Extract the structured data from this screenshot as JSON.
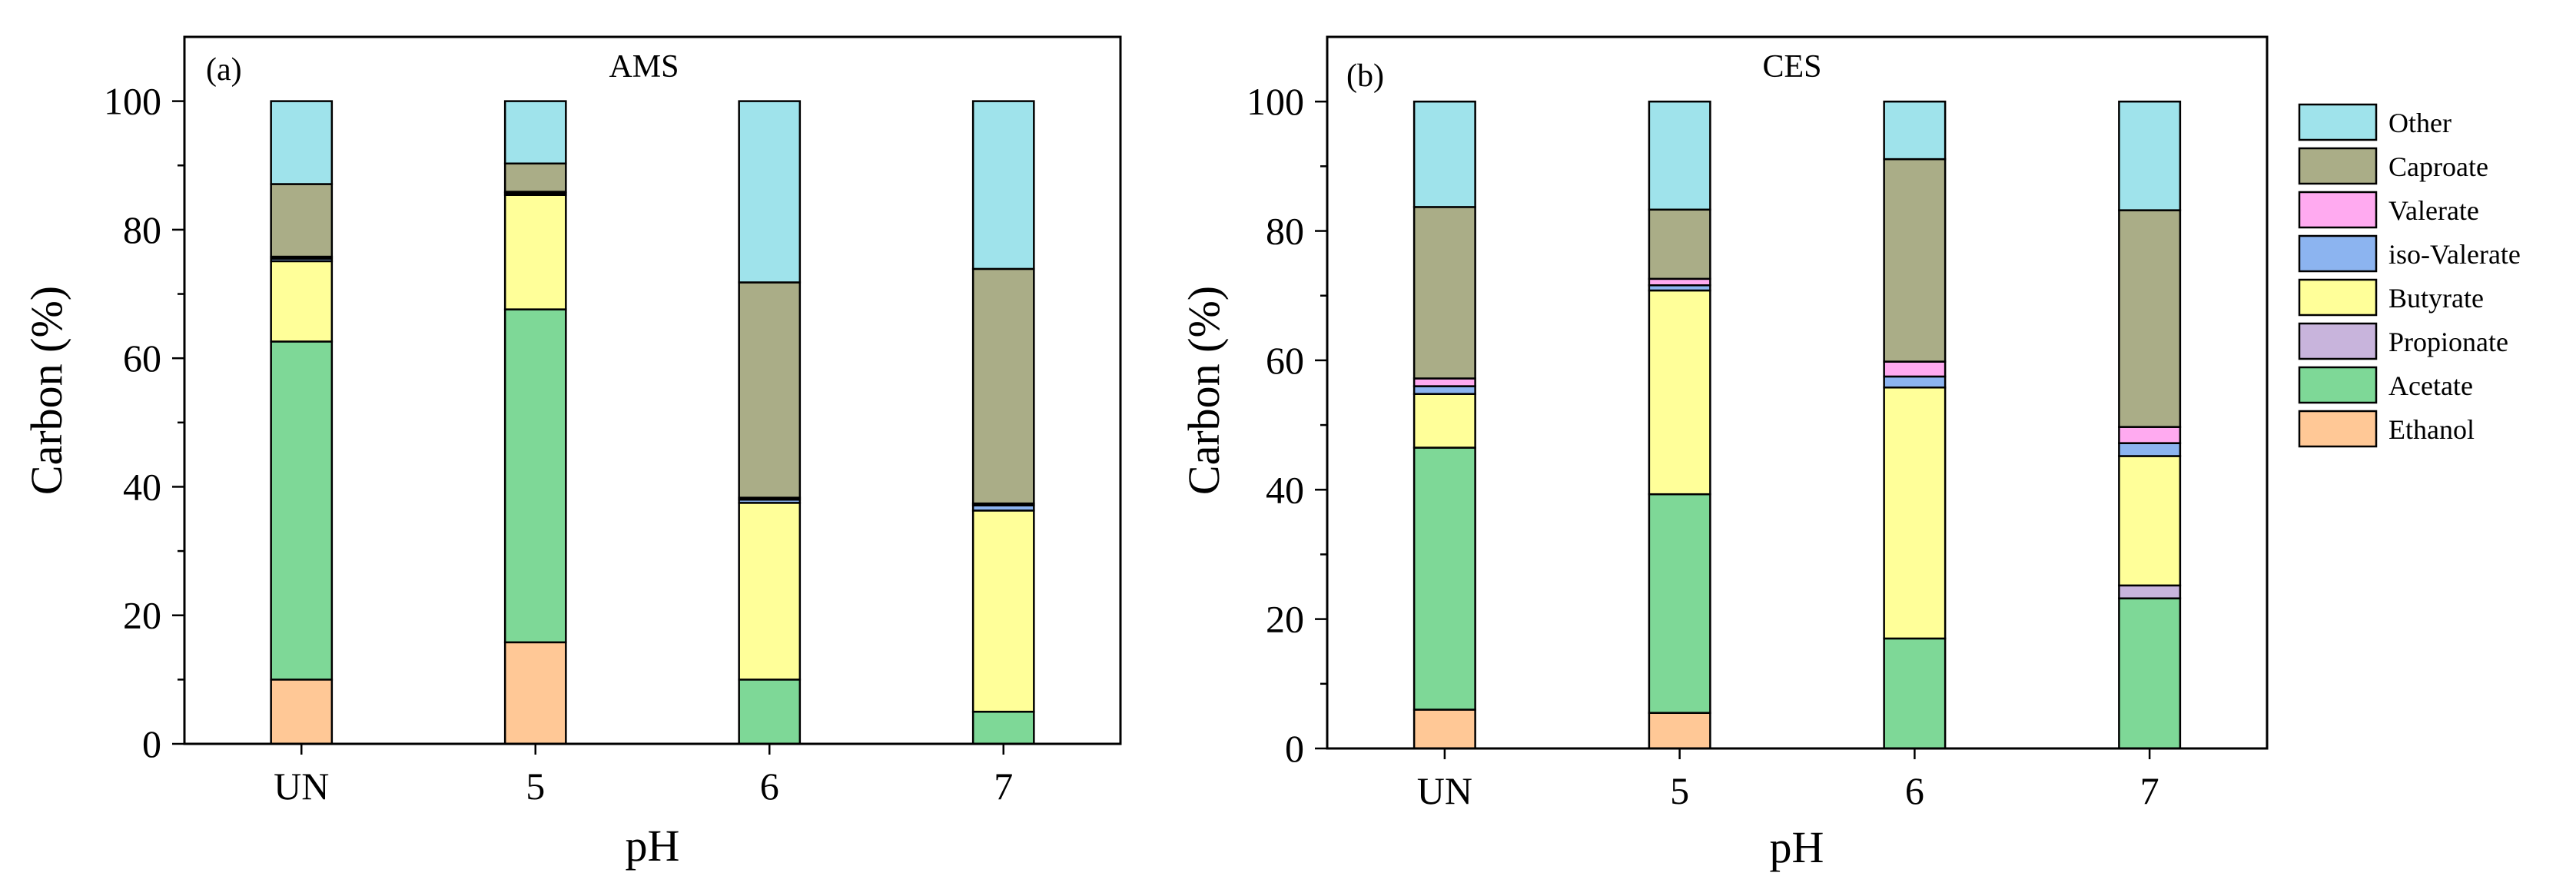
{
  "chart_data": [
    {
      "type": "bar",
      "stacked": true,
      "panel_label": "(a)",
      "title": "AMS",
      "xlabel": "pH",
      "ylabel": "Carbon (%)",
      "categories": [
        "UN",
        "5",
        "6",
        "7"
      ],
      "ylim": [
        0,
        110
      ],
      "yticks": [
        "0",
        "20",
        "40",
        "60",
        "80",
        "100"
      ],
      "grid": false,
      "series": [
        {
          "name": "Ethanol",
          "color": "#FFC896",
          "values": [
            10,
            15.8,
            0,
            0
          ]
        },
        {
          "name": "Acetate",
          "color": "#7ED897",
          "values": [
            52.6,
            51.8,
            10,
            5
          ]
        },
        {
          "name": "Propionate",
          "color": "#C8B4DC",
          "values": [
            0,
            0,
            0,
            0
          ]
        },
        {
          "name": "Butyrate",
          "color": "#FFFF99",
          "values": [
            12.5,
            17.8,
            27.5,
            31.3
          ]
        },
        {
          "name": "iso-Valerate",
          "color": "#8CB4F0",
          "values": [
            0.4,
            0.3,
            0.5,
            0.8
          ]
        },
        {
          "name": "Valerate",
          "color": "#FFAAF0",
          "values": [
            0.3,
            0.2,
            0.3,
            0.3
          ]
        },
        {
          "name": "Caproate",
          "color": "#AAAD87",
          "values": [
            11.3,
            4.4,
            33.5,
            36.5
          ]
        },
        {
          "name": "Other",
          "color": "#9FE3EB",
          "values": [
            12.9,
            9.7,
            28.2,
            26.1
          ]
        }
      ]
    },
    {
      "type": "bar",
      "stacked": true,
      "panel_label": "(b)",
      "title": "CES",
      "xlabel": "pH",
      "ylabel": "Carbon (%)",
      "categories": [
        "UN",
        "5",
        "6",
        "7"
      ],
      "ylim": [
        0,
        110
      ],
      "yticks": [
        "0",
        "20",
        "40",
        "60",
        "80",
        "100"
      ],
      "grid": false,
      "series": [
        {
          "name": "Ethanol",
          "color": "#FFC896",
          "values": [
            6,
            5.5,
            0,
            0
          ]
        },
        {
          "name": "Acetate",
          "color": "#7ED897",
          "values": [
            40.5,
            33.8,
            17,
            23.2
          ]
        },
        {
          "name": "Propionate",
          "color": "#C8B4DC",
          "values": [
            0,
            0,
            0,
            2
          ]
        },
        {
          "name": "Butyrate",
          "color": "#FFFF99",
          "values": [
            8.3,
            31.5,
            38.8,
            20
          ]
        },
        {
          "name": "iso-Valerate",
          "color": "#8CB4F0",
          "values": [
            1.2,
            0.8,
            1.7,
            2
          ]
        },
        {
          "name": "Valerate",
          "color": "#FFAAF0",
          "values": [
            1.2,
            1,
            2.3,
            2.5
          ]
        },
        {
          "name": "Caproate",
          "color": "#AAAD87",
          "values": [
            26.5,
            10.7,
            31.3,
            33.5
          ]
        },
        {
          "name": "Other",
          "color": "#9FE3EB",
          "values": [
            16.3,
            16.7,
            8.9,
            16.8
          ]
        }
      ]
    }
  ],
  "legend": {
    "placement": "right",
    "items": [
      {
        "label": "Other",
        "color": "#9FE3EB"
      },
      {
        "label": "Caproate",
        "color": "#AAAD87"
      },
      {
        "label": "Valerate",
        "color": "#FFAAF0"
      },
      {
        "label": "iso-Valerate",
        "color": "#8CB4F0"
      },
      {
        "label": "Butyrate",
        "color": "#FFFF99"
      },
      {
        "label": "Propionate",
        "color": "#C8B4DC"
      },
      {
        "label": "Acetate",
        "color": "#7ED897"
      },
      {
        "label": "Ethanol",
        "color": "#FFC896"
      }
    ]
  }
}
